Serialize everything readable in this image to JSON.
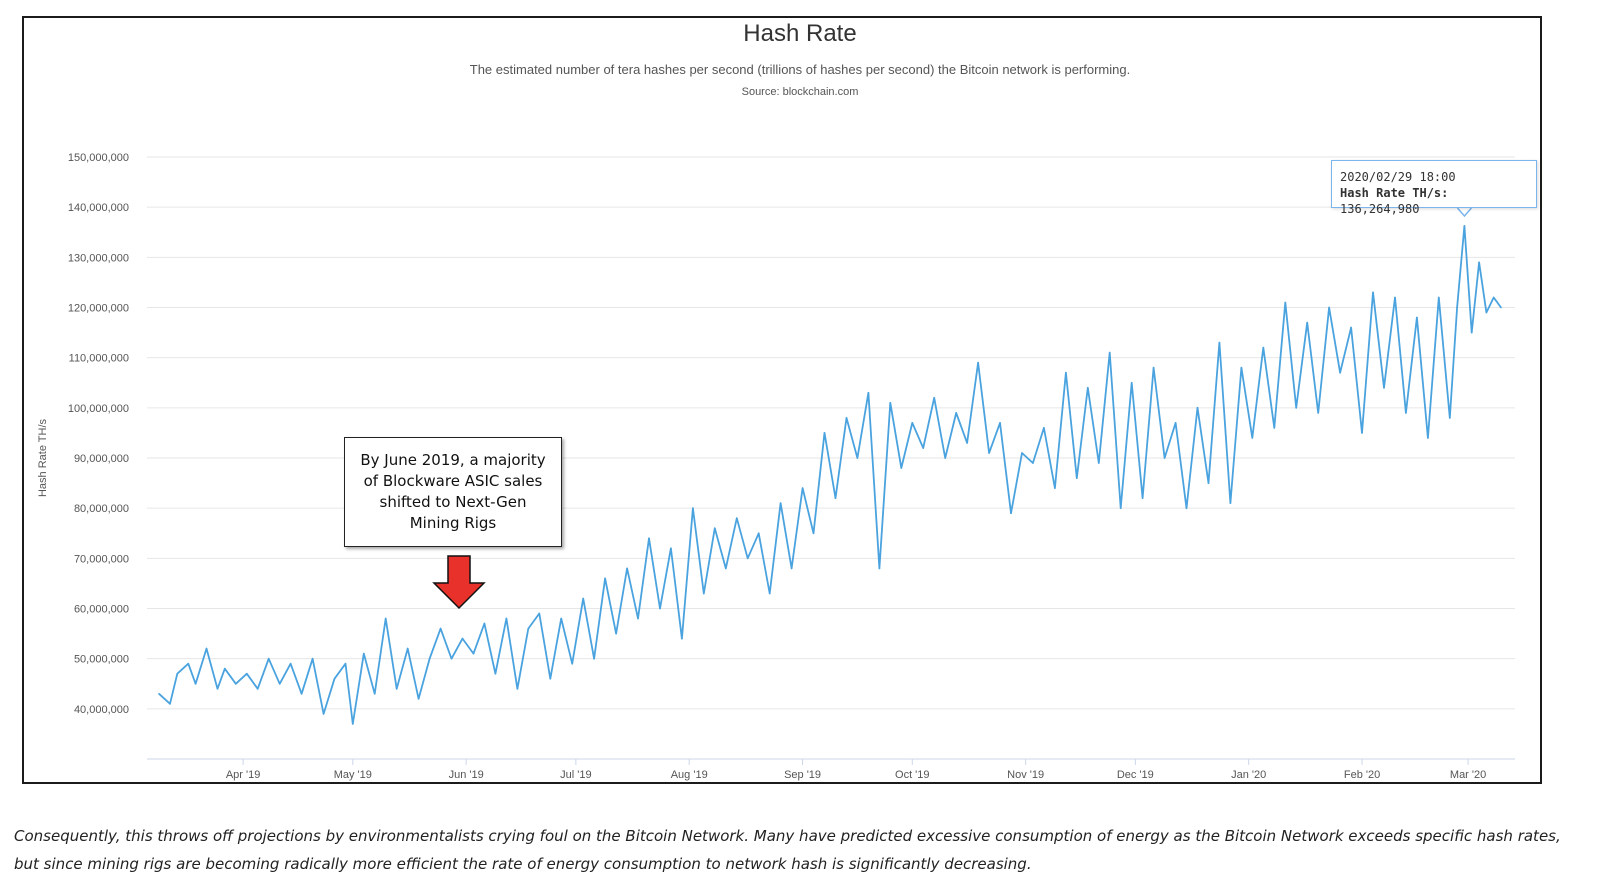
{
  "chart_data": {
    "type": "line",
    "title": "Hash Rate",
    "subtitle": "The estimated number of tera hashes per second (trillions of hashes per second) the Bitcoin network is performing.",
    "source": "Source: blockchain.com",
    "ylabel": "Hash Rate TH/s",
    "xlabel": "",
    "ylim": [
      30000000,
      150000000
    ],
    "y_ticks": [
      "40,000,000",
      "50,000,000",
      "60,000,000",
      "70,000,000",
      "80,000,000",
      "90,000,000",
      "100,000,000",
      "110,000,000",
      "120,000,000",
      "130,000,000",
      "140,000,000",
      "150,000,000"
    ],
    "x_ticks": [
      "Apr '19",
      "May '19",
      "Jun '19",
      "Jul '19",
      "Aug '19",
      "Sep '19",
      "Oct '19",
      "Nov '19",
      "Dec '19",
      "Jan '20",
      "Feb '20",
      "Mar '20"
    ],
    "grid": true,
    "x_start": "2019-03-09",
    "x_end": "2020-03-10",
    "series": [
      {
        "name": "Hash Rate TH/s",
        "color": "#4aa3df",
        "points": [
          [
            "2019-03-09",
            43000000
          ],
          [
            "2019-03-12",
            41000000
          ],
          [
            "2019-03-14",
            47000000
          ],
          [
            "2019-03-17",
            49000000
          ],
          [
            "2019-03-19",
            45000000
          ],
          [
            "2019-03-22",
            52000000
          ],
          [
            "2019-03-25",
            44000000
          ],
          [
            "2019-03-27",
            48000000
          ],
          [
            "2019-03-30",
            45000000
          ],
          [
            "2019-04-02",
            47000000
          ],
          [
            "2019-04-05",
            44000000
          ],
          [
            "2019-04-08",
            50000000
          ],
          [
            "2019-04-11",
            45000000
          ],
          [
            "2019-04-14",
            49000000
          ],
          [
            "2019-04-17",
            43000000
          ],
          [
            "2019-04-20",
            50000000
          ],
          [
            "2019-04-23",
            39000000
          ],
          [
            "2019-04-26",
            46000000
          ],
          [
            "2019-04-29",
            49000000
          ],
          [
            "2019-05-01",
            37000000
          ],
          [
            "2019-05-04",
            51000000
          ],
          [
            "2019-05-07",
            43000000
          ],
          [
            "2019-05-10",
            58000000
          ],
          [
            "2019-05-13",
            44000000
          ],
          [
            "2019-05-16",
            52000000
          ],
          [
            "2019-05-19",
            42000000
          ],
          [
            "2019-05-22",
            50000000
          ],
          [
            "2019-05-25",
            56000000
          ],
          [
            "2019-05-28",
            50000000
          ],
          [
            "2019-05-31",
            54000000
          ],
          [
            "2019-06-03",
            51000000
          ],
          [
            "2019-06-06",
            57000000
          ],
          [
            "2019-06-09",
            47000000
          ],
          [
            "2019-06-12",
            58000000
          ],
          [
            "2019-06-15",
            44000000
          ],
          [
            "2019-06-18",
            56000000
          ],
          [
            "2019-06-21",
            59000000
          ],
          [
            "2019-06-24",
            46000000
          ],
          [
            "2019-06-27",
            58000000
          ],
          [
            "2019-06-30",
            49000000
          ],
          [
            "2019-07-03",
            62000000
          ],
          [
            "2019-07-06",
            50000000
          ],
          [
            "2019-07-09",
            66000000
          ],
          [
            "2019-07-12",
            55000000
          ],
          [
            "2019-07-15",
            68000000
          ],
          [
            "2019-07-18",
            58000000
          ],
          [
            "2019-07-21",
            74000000
          ],
          [
            "2019-07-24",
            60000000
          ],
          [
            "2019-07-27",
            72000000
          ],
          [
            "2019-07-30",
            54000000
          ],
          [
            "2019-08-02",
            80000000
          ],
          [
            "2019-08-05",
            63000000
          ],
          [
            "2019-08-08",
            76000000
          ],
          [
            "2019-08-11",
            68000000
          ],
          [
            "2019-08-14",
            78000000
          ],
          [
            "2019-08-17",
            70000000
          ],
          [
            "2019-08-20",
            75000000
          ],
          [
            "2019-08-23",
            63000000
          ],
          [
            "2019-08-26",
            81000000
          ],
          [
            "2019-08-29",
            68000000
          ],
          [
            "2019-09-01",
            84000000
          ],
          [
            "2019-09-04",
            75000000
          ],
          [
            "2019-09-07",
            95000000
          ],
          [
            "2019-09-10",
            82000000
          ],
          [
            "2019-09-13",
            98000000
          ],
          [
            "2019-09-16",
            90000000
          ],
          [
            "2019-09-19",
            103000000
          ],
          [
            "2019-09-22",
            68000000
          ],
          [
            "2019-09-25",
            101000000
          ],
          [
            "2019-09-28",
            88000000
          ],
          [
            "2019-10-01",
            97000000
          ],
          [
            "2019-10-04",
            92000000
          ],
          [
            "2019-10-07",
            102000000
          ],
          [
            "2019-10-10",
            90000000
          ],
          [
            "2019-10-13",
            99000000
          ],
          [
            "2019-10-16",
            93000000
          ],
          [
            "2019-10-19",
            109000000
          ],
          [
            "2019-10-22",
            91000000
          ],
          [
            "2019-10-25",
            97000000
          ],
          [
            "2019-10-28",
            79000000
          ],
          [
            "2019-10-31",
            91000000
          ],
          [
            "2019-11-03",
            89000000
          ],
          [
            "2019-11-06",
            96000000
          ],
          [
            "2019-11-09",
            84000000
          ],
          [
            "2019-11-12",
            107000000
          ],
          [
            "2019-11-15",
            86000000
          ],
          [
            "2019-11-18",
            104000000
          ],
          [
            "2019-11-21",
            89000000
          ],
          [
            "2019-11-24",
            111000000
          ],
          [
            "2019-11-27",
            80000000
          ],
          [
            "2019-11-30",
            105000000
          ],
          [
            "2019-12-03",
            82000000
          ],
          [
            "2019-12-06",
            108000000
          ],
          [
            "2019-12-09",
            90000000
          ],
          [
            "2019-12-12",
            97000000
          ],
          [
            "2019-12-15",
            80000000
          ],
          [
            "2019-12-18",
            100000000
          ],
          [
            "2019-12-21",
            85000000
          ],
          [
            "2019-12-24",
            113000000
          ],
          [
            "2019-12-27",
            81000000
          ],
          [
            "2019-12-30",
            108000000
          ],
          [
            "2020-01-02",
            94000000
          ],
          [
            "2020-01-05",
            112000000
          ],
          [
            "2020-01-08",
            96000000
          ],
          [
            "2020-01-11",
            121000000
          ],
          [
            "2020-01-14",
            100000000
          ],
          [
            "2020-01-17",
            117000000
          ],
          [
            "2020-01-20",
            99000000
          ],
          [
            "2020-01-23",
            120000000
          ],
          [
            "2020-01-26",
            107000000
          ],
          [
            "2020-01-29",
            116000000
          ],
          [
            "2020-02-01",
            95000000
          ],
          [
            "2020-02-04",
            123000000
          ],
          [
            "2020-02-07",
            104000000
          ],
          [
            "2020-02-10",
            122000000
          ],
          [
            "2020-02-13",
            99000000
          ],
          [
            "2020-02-16",
            118000000
          ],
          [
            "2020-02-19",
            94000000
          ],
          [
            "2020-02-22",
            122000000
          ],
          [
            "2020-02-25",
            98000000
          ],
          [
            "2020-02-27",
            120000000
          ],
          [
            "2020-02-29",
            136264980
          ],
          [
            "2020-03-02",
            115000000
          ],
          [
            "2020-03-04",
            129000000
          ],
          [
            "2020-03-06",
            119000000
          ],
          [
            "2020-03-08",
            122000000
          ],
          [
            "2020-03-10",
            120000000
          ]
        ]
      }
    ],
    "tooltip": {
      "date": "2020/02/29 18:00",
      "label": "Hash Rate TH/s:",
      "value": "136,264,980"
    },
    "annotation": {
      "text": "By June 2019, a majority of Blockware ASIC sales shifted to Next-Gen Mining Rigs",
      "arrow_color": "#e8312a"
    }
  },
  "caption": "Consequently, this throws off projections by environmentalists crying foul on the Bitcoin Network. Many have predicted excessive consumption of energy as the Bitcoin Network exceeds specific hash rates, but since mining rigs are becoming radically more efficient the rate of energy consumption to network hash is significantly decreasing."
}
